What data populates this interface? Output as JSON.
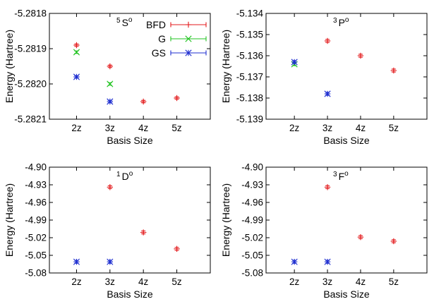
{
  "figure": {
    "legend": [
      {
        "series": "BFD",
        "color": "#e31a1c",
        "marker": "plus"
      },
      {
        "series": "G",
        "color": "#22c422",
        "marker": "x"
      },
      {
        "series": "GS",
        "color": "#1f2fd0",
        "marker": "star"
      }
    ]
  },
  "chart_data": [
    {
      "type": "scatter",
      "panel": "top-left",
      "state_label": {
        "mult": "5",
        "letter": "S",
        "sup": "o"
      },
      "xlabel": "Basis Size",
      "ylabel": "Energy (Hartree)",
      "categories": [
        "2z",
        "3z",
        "4z",
        "5z"
      ],
      "ylim": [
        -5.2821,
        -5.2818
      ],
      "yticks": [
        "-5.2818",
        "-5.2819",
        "-5.2820",
        "-5.2821"
      ],
      "ytick_values": [
        -5.2818,
        -5.2819,
        -5.282,
        -5.2821
      ],
      "legend_position": "top-right",
      "series": [
        {
          "name": "BFD",
          "color": "#e31a1c",
          "marker": "plus",
          "points": [
            {
              "x": "2z",
              "y": -5.28189,
              "err": 3.5e-06
            },
            {
              "x": "3z",
              "y": -5.28195,
              "err": 3.5e-06
            },
            {
              "x": "4z",
              "y": -5.28205,
              "err": 3.5e-06
            },
            {
              "x": "5z",
              "y": -5.28204,
              "err": 3.5e-06
            }
          ]
        },
        {
          "name": "G",
          "color": "#22c422",
          "marker": "x",
          "points": [
            {
              "x": "2z",
              "y": -5.28191,
              "err": 3.5e-06
            },
            {
              "x": "3z",
              "y": -5.282,
              "err": 3.5e-06
            }
          ]
        },
        {
          "name": "GS",
          "color": "#1f2fd0",
          "marker": "star",
          "points": [
            {
              "x": "2z",
              "y": -5.28198,
              "err": 3.5e-06
            },
            {
              "x": "3z",
              "y": -5.28205,
              "err": 3.5e-06
            }
          ]
        }
      ]
    },
    {
      "type": "scatter",
      "panel": "top-right",
      "state_label": {
        "mult": "3",
        "letter": "P",
        "sup": "o"
      },
      "xlabel": "Basis Size",
      "ylabel": "Energy (Hartree)",
      "categories": [
        "2z",
        "3z",
        "4z",
        "5z"
      ],
      "ylim": [
        -5.139,
        -5.134
      ],
      "yticks": [
        "-5.134",
        "-5.135",
        "-5.136",
        "-5.137",
        "-5.138",
        "-5.139"
      ],
      "ytick_values": [
        -5.134,
        -5.135,
        -5.136,
        -5.137,
        -5.138,
        -5.139
      ],
      "series": [
        {
          "name": "BFD",
          "color": "#e31a1c",
          "marker": "plus",
          "points": [
            {
              "x": "3z",
              "y": -5.1353,
              "err": 7e-05
            },
            {
              "x": "4z",
              "y": -5.136,
              "err": 7e-05
            },
            {
              "x": "5z",
              "y": -5.1367,
              "err": 7e-05
            }
          ]
        },
        {
          "name": "G",
          "color": "#22c422",
          "marker": "x",
          "points": [
            {
              "x": "2z",
              "y": -5.1364,
              "err": 7e-05
            }
          ]
        },
        {
          "name": "GS",
          "color": "#1f2fd0",
          "marker": "star",
          "points": [
            {
              "x": "2z",
              "y": -5.1363,
              "err": 7e-05
            },
            {
              "x": "3z",
              "y": -5.1378,
              "err": 7e-05
            }
          ]
        }
      ]
    },
    {
      "type": "scatter",
      "panel": "bottom-left",
      "state_label": {
        "mult": "1",
        "letter": "D",
        "sup": "o"
      },
      "xlabel": "Basis Size",
      "ylabel": "Energy (Hartree)",
      "categories": [
        "2z",
        "3z",
        "4z",
        "5z"
      ],
      "ylim": [
        -5.08,
        -4.9
      ],
      "yticks": [
        "-4.90",
        "-4.93",
        "-4.96",
        "-4.99",
        "-5.02",
        "-5.05",
        "-5.08"
      ],
      "ytick_values": [
        -4.9,
        -4.93,
        -4.96,
        -4.99,
        -5.02,
        -5.05,
        -5.08
      ],
      "series": [
        {
          "name": "BFD",
          "color": "#e31a1c",
          "marker": "plus",
          "points": [
            {
              "x": "3z",
              "y": -4.934,
              "err": 0.0025
            },
            {
              "x": "4z",
              "y": -5.011,
              "err": 0.0025
            },
            {
              "x": "5z",
              "y": -5.039,
              "err": 0.0025
            }
          ]
        },
        {
          "name": "GS",
          "color": "#1f2fd0",
          "marker": "star",
          "points": [
            {
              "x": "2z",
              "y": -5.061,
              "err": 0.0025
            },
            {
              "x": "3z",
              "y": -5.061,
              "err": 0.0025
            }
          ]
        }
      ]
    },
    {
      "type": "scatter",
      "panel": "bottom-right",
      "state_label": {
        "mult": "3",
        "letter": "F",
        "sup": "o"
      },
      "xlabel": "Basis Size",
      "ylabel": "Energy (Hartree)",
      "categories": [
        "2z",
        "3z",
        "4z",
        "5z"
      ],
      "ylim": [
        -5.08,
        -4.9
      ],
      "yticks": [
        "-4.90",
        "-4.93",
        "-4.96",
        "-4.99",
        "-5.02",
        "-5.05",
        "-5.08"
      ],
      "ytick_values": [
        -4.9,
        -4.93,
        -4.96,
        -4.99,
        -5.02,
        -5.05,
        -5.08
      ],
      "series": [
        {
          "name": "BFD",
          "color": "#e31a1c",
          "marker": "plus",
          "points": [
            {
              "x": "3z",
              "y": -4.934,
              "err": 0.0025
            },
            {
              "x": "4z",
              "y": -5.019,
              "err": 0.0025
            },
            {
              "x": "5z",
              "y": -5.026,
              "err": 0.0025
            }
          ]
        },
        {
          "name": "GS",
          "color": "#1f2fd0",
          "marker": "star",
          "points": [
            {
              "x": "2z",
              "y": -5.061,
              "err": 0.0025
            },
            {
              "x": "3z",
              "y": -5.061,
              "err": 0.0025
            }
          ]
        }
      ]
    }
  ]
}
